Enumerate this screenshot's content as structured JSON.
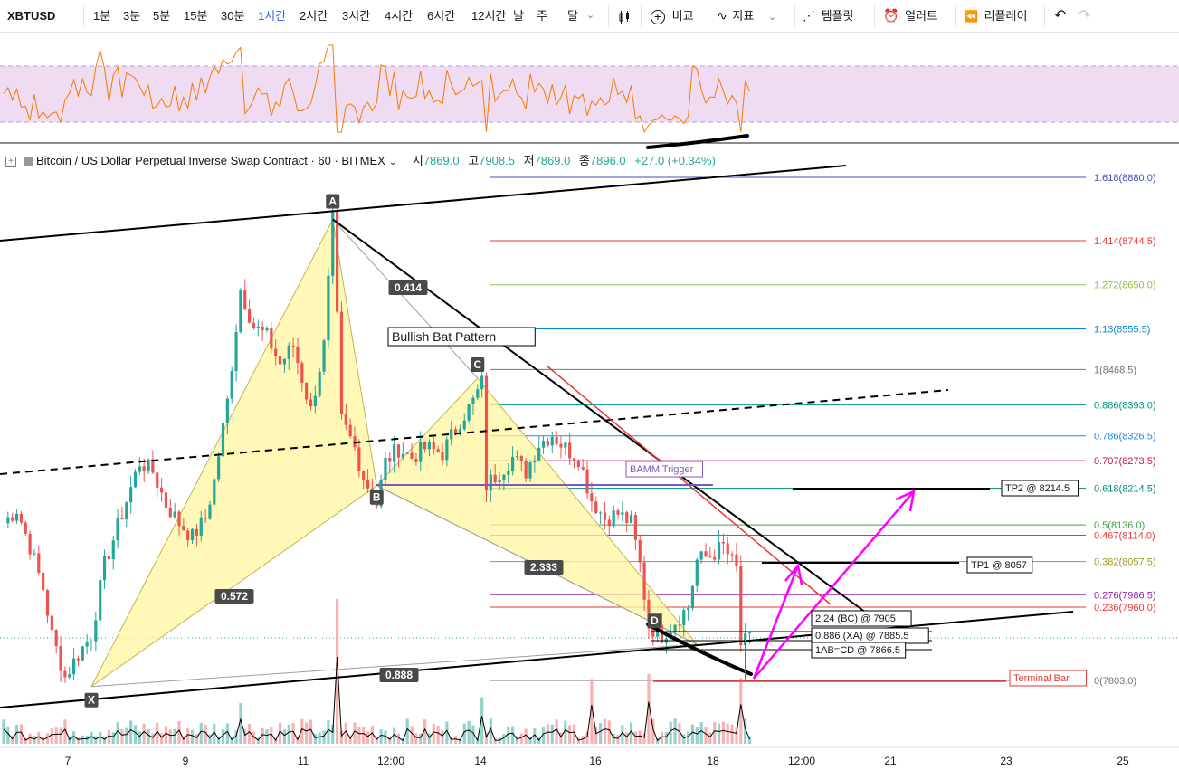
{
  "toolbar": {
    "symbol": "XBTUSD",
    "intervals": [
      "1분",
      "3분",
      "5분",
      "15분",
      "30분",
      "1시간",
      "2시간",
      "3시간",
      "4시간",
      "6시간",
      "12시간",
      "날",
      "주",
      "달"
    ],
    "active_interval": "1시간",
    "compare_label": "비교",
    "indicators_label": "지표",
    "templates_label": "템플릿",
    "alert_label": "얼러트",
    "replay_label": "리플레이"
  },
  "legend": {
    "title": "Bitcoin / US Dollar Perpetual Inverse Swap Contract · 60 · BITMEX",
    "open_label": "시",
    "open": "7869.0",
    "high_label": "고",
    "high": "7908.5",
    "low_label": "저",
    "low": "7869.0",
    "close_label": "종",
    "close": "7896.0",
    "change": "+27.0 (+0.34%)"
  },
  "colors": {
    "up": "#26a69a",
    "down": "#ef5350",
    "pattern_fill": "#fff59d",
    "rsi_line": "#f57c00",
    "rsi_band": "#e1bee7",
    "projection": "#ff00ff"
  },
  "chart_data": {
    "type": "candlestick",
    "x_ticks": [
      "7",
      "9",
      "11",
      "12:00",
      "14",
      "16",
      "18",
      "12:00",
      "21",
      "23",
      "25"
    ],
    "anchors": [
      {
        "t": 0,
        "p": 8140
      },
      {
        "t": 3,
        "p": 8170
      },
      {
        "t": 6,
        "p": 8090
      },
      {
        "t": 9,
        "p": 8000
      },
      {
        "t": 11,
        "p": 7900
      },
      {
        "t": 14,
        "p": 7810
      },
      {
        "t": 17,
        "p": 7860
      },
      {
        "t": 20,
        "p": 7900
      },
      {
        "t": 23,
        "p": 8050
      },
      {
        "t": 27,
        "p": 8160
      },
      {
        "t": 31,
        "p": 8270
      },
      {
        "t": 34,
        "p": 8250
      },
      {
        "t": 37,
        "p": 8180
      },
      {
        "t": 40,
        "p": 8140
      },
      {
        "t": 43,
        "p": 8110
      },
      {
        "t": 46,
        "p": 8150
      },
      {
        "t": 48,
        "p": 8230
      },
      {
        "t": 51,
        "p": 8400
      },
      {
        "t": 54,
        "p": 8640
      },
      {
        "t": 57,
        "p": 8560
      },
      {
        "t": 60,
        "p": 8540
      },
      {
        "t": 63,
        "p": 8480
      },
      {
        "t": 66,
        "p": 8520
      },
      {
        "t": 70,
        "p": 8380
      },
      {
        "t": 73,
        "p": 8520
      },
      {
        "t": 75,
        "p": 8790
      },
      {
        "t": 77,
        "p": 8360
      },
      {
        "t": 80,
        "p": 8300
      },
      {
        "t": 82,
        "p": 8240
      },
      {
        "t": 85,
        "p": 8180
      },
      {
        "t": 87,
        "p": 8270
      },
      {
        "t": 90,
        "p": 8300
      },
      {
        "t": 93,
        "p": 8280
      },
      {
        "t": 96,
        "p": 8300
      },
      {
        "t": 100,
        "p": 8290
      },
      {
        "t": 104,
        "p": 8360
      },
      {
        "t": 107,
        "p": 8400
      },
      {
        "t": 109,
        "p": 8440
      },
      {
        "t": 110,
        "p": 8220
      },
      {
        "t": 113,
        "p": 8250
      },
      {
        "t": 116,
        "p": 8280
      },
      {
        "t": 119,
        "p": 8250
      },
      {
        "t": 122,
        "p": 8310
      },
      {
        "t": 125,
        "p": 8330
      },
      {
        "t": 128,
        "p": 8300
      },
      {
        "t": 131,
        "p": 8280
      },
      {
        "t": 134,
        "p": 8190
      },
      {
        "t": 137,
        "p": 8150
      },
      {
        "t": 140,
        "p": 8160
      },
      {
        "t": 143,
        "p": 8140
      },
      {
        "t": 145,
        "p": 8050
      },
      {
        "t": 147,
        "p": 7920
      },
      {
        "t": 150,
        "p": 7900
      },
      {
        "t": 153,
        "p": 7930
      },
      {
        "t": 156,
        "p": 7960
      },
      {
        "t": 158,
        "p": 8060
      },
      {
        "t": 161,
        "p": 8070
      },
      {
        "t": 164,
        "p": 8090
      },
      {
        "t": 167,
        "p": 8040
      },
      {
        "t": 168,
        "p": 7880
      },
      {
        "t": 170,
        "p": 7890
      }
    ],
    "pattern": {
      "name": "Bullish Bat Pattern",
      "points": {
        "X": {
          "t": 20,
          "p": 7790
        },
        "A": {
          "t": 75,
          "p": 8790
        },
        "B": {
          "t": 85,
          "p": 8220
        },
        "C": {
          "t": 108,
          "p": 8450
        },
        "D": {
          "t": 158,
          "p": 7880
        }
      },
      "ratios": {
        "XB": "0.572",
        "AC": "0.414",
        "BD": "2.333",
        "XD": "0.888"
      },
      "point_labels": {
        "X": "X",
        "A": "A",
        "B": "B",
        "C": "C",
        "D": "D"
      }
    },
    "fib_levels": [
      {
        "ratio": "1.618",
        "price": "8880.0",
        "label": "1.618(8880.0)",
        "color": "#3f51b5"
      },
      {
        "ratio": "1.414",
        "price": "8744.5",
        "label": "1.414(8744.5)",
        "color": "#e53935"
      },
      {
        "ratio": "1.272",
        "price": "8650.0",
        "label": "1.272(8650.0)",
        "color": "#8bc34a"
      },
      {
        "ratio": "1.13",
        "price": "8555.5",
        "label": "1.13(8555.5)",
        "color": "#0288d1"
      },
      {
        "ratio": "1",
        "price": "8468.5",
        "label": "1(8468.5)",
        "color": "#757575"
      },
      {
        "ratio": "0.886",
        "price": "8393.0",
        "label": "0.886(8393.0)",
        "color": "#009688"
      },
      {
        "ratio": "0.786",
        "price": "8326.5",
        "label": "0.786(8326.5)",
        "color": "#1e88e5"
      },
      {
        "ratio": "0.707",
        "price": "8273.5",
        "label": "0.707(8273.5)",
        "color": "#c2185b"
      },
      {
        "ratio": "0.618",
        "price": "8214.5",
        "label": "0.618(8214.5)",
        "color": "#00897b"
      },
      {
        "ratio": "0.5",
        "price": "8136.0",
        "label": "0.5(8136.0)",
        "color": "#43a047"
      },
      {
        "ratio": "0.467",
        "price": "8114.0",
        "label": "0.467(8114.0)",
        "color": "#e53935"
      },
      {
        "ratio": "0.382",
        "price": "8057.5",
        "label": "0.382(8057.5)",
        "color": "#9e9d24"
      },
      {
        "ratio": "0.276",
        "price": "7986.5",
        "label": "0.276(7986.5)",
        "color": "#8e24aa"
      },
      {
        "ratio": "0.236",
        "price": "7960.0",
        "label": "0.236(7960.0)",
        "color": "#e53935"
      },
      {
        "ratio": "0",
        "price": "7803.0",
        "label": "0(7803.0)",
        "color": "#757575"
      }
    ],
    "annotations": {
      "bamm": "BAMM Trigger",
      "tp2": "TP2 @ 8214.5",
      "tp1": "TP1 @ 8057",
      "bc": "2.24 (BC) @ 7905",
      "xa": "0.886 (XA) @ 7885.5",
      "abcd": "1AB=CD @ 7866.5",
      "terminal": "Terminal Bar"
    }
  }
}
